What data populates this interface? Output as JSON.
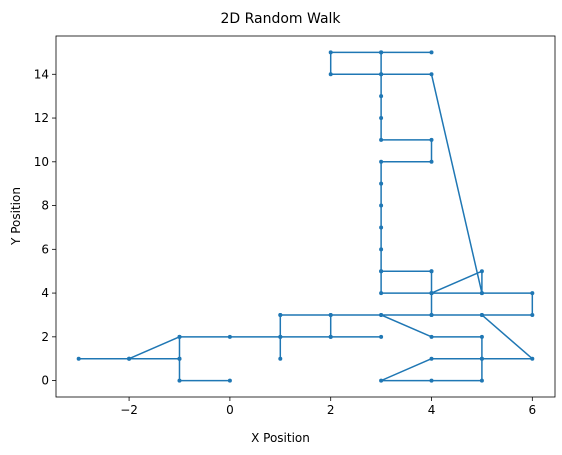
{
  "chart_data": {
    "type": "line",
    "title": "2D Random Walk",
    "xlabel": "X Position",
    "ylabel": "Y Position",
    "xlim": [
      -3.45,
      6.45
    ],
    "ylim": [
      -0.75,
      15.75
    ],
    "xticks": [
      -2,
      0,
      2,
      4,
      6
    ],
    "xtick_labels": [
      "−2",
      "0",
      "2",
      "4",
      "6"
    ],
    "yticks": [
      0,
      2,
      4,
      6,
      8,
      10,
      12,
      14
    ],
    "ytick_labels": [
      "0",
      "2",
      "4",
      "6",
      "8",
      "10",
      "12",
      "14"
    ],
    "grid": false,
    "legend": false,
    "series": [
      {
        "color": "#1f77b4",
        "marker": "circle",
        "x": [
          0,
          -1,
          -1,
          -1,
          -2,
          -3,
          -2,
          -1,
          -1,
          0,
          1,
          1,
          1,
          2,
          3,
          2,
          2,
          3,
          4,
          5,
          6,
          6,
          5,
          4,
          4,
          3,
          4,
          4,
          3,
          3,
          3,
          3,
          3,
          3,
          3,
          4,
          4,
          3,
          3,
          3,
          3,
          2,
          2,
          3,
          4,
          3,
          3,
          4,
          5,
          5,
          4,
          4,
          5,
          6,
          5,
          4,
          3,
          4,
          5,
          5,
          5,
          4,
          3,
          2,
          1,
          1
        ],
        "y": [
          0,
          0,
          1,
          2,
          1,
          1,
          1,
          1,
          2,
          2,
          2,
          3,
          2,
          2,
          2,
          2,
          3,
          3,
          3,
          3,
          3,
          4,
          4,
          4,
          5,
          5,
          5,
          4,
          4,
          5,
          6,
          7,
          8,
          9,
          10,
          10,
          11,
          11,
          12,
          13,
          14,
          14,
          15,
          15,
          15,
          15,
          14,
          14,
          4,
          5,
          4,
          3,
          3,
          1,
          1,
          1,
          0,
          0,
          0,
          1,
          2,
          2,
          3,
          3,
          3,
          1
        ]
      }
    ]
  }
}
